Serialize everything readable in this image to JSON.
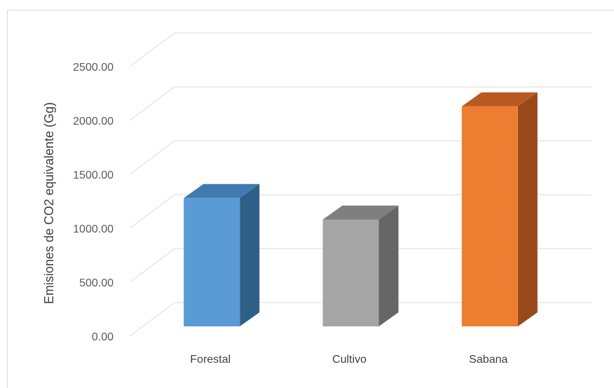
{
  "chart_data": {
    "type": "bar",
    "title": "",
    "xlabel": "",
    "ylabel": "Emisiones de CO2 equivalente (Gg)",
    "categories": [
      "Forestal",
      "Cultivo",
      "Sabana"
    ],
    "values": [
      1190,
      990,
      2040
    ],
    "colors": [
      "#5b9bd5",
      "#a5a5a5",
      "#ed7d31"
    ],
    "side_colors": [
      "#2e5f86",
      "#666666",
      "#9a4a1a"
    ],
    "top_colors": [
      "#3f7bb0",
      "#7f7f7f",
      "#b85a22"
    ],
    "ylim": [
      0,
      2500
    ],
    "yticks": [
      "0.00",
      "500.00",
      "1000.00",
      "1500.00",
      "2000.00",
      "2500.00"
    ],
    "ytick_values": [
      0,
      500,
      1000,
      1500,
      2000,
      2500
    ],
    "grid": true,
    "bar_style": "3d"
  }
}
